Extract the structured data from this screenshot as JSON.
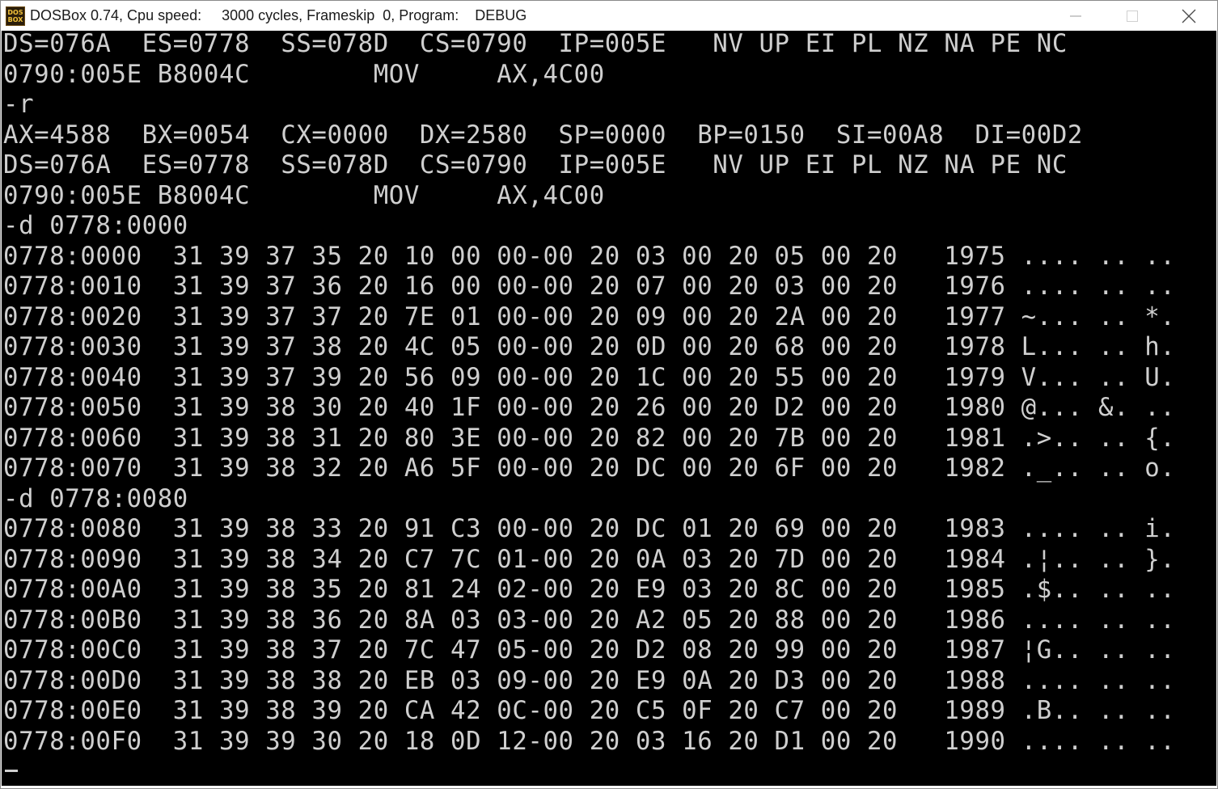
{
  "window": {
    "title": "DOSBox 0.74, Cpu speed:     3000 cycles, Frameskip  0, Program:    DEBUG",
    "icon": "dosbox-icon",
    "icon_text_top": "DOS",
    "icon_text_bottom": "BOX",
    "controls": [
      "minimize-icon",
      "maximize-icon",
      "close-icon"
    ]
  },
  "terminal": {
    "lines": [
      "DS=076A  ES=0778  SS=078D  CS=0790  IP=005E   NV UP EI PL NZ NA PE NC",
      "0790:005E B8004C        MOV     AX,4C00",
      "-r",
      "AX=4588  BX=0054  CX=0000  DX=2580  SP=0000  BP=0150  SI=00A8  DI=00D2",
      "DS=076A  ES=0778  SS=078D  CS=0790  IP=005E   NV UP EI PL NZ NA PE NC",
      "0790:005E B8004C        MOV     AX,4C00",
      "-d 0778:0000",
      "0778:0000  31 39 37 35 20 10 00 00-00 20 03 00 20 05 00 20   1975 .... .. ..",
      "0778:0010  31 39 37 36 20 16 00 00-00 20 07 00 20 03 00 20   1976 .... .. ..",
      "0778:0020  31 39 37 37 20 7E 01 00-00 20 09 00 20 2A 00 20   1977 ~... .. *.",
      "0778:0030  31 39 37 38 20 4C 05 00-00 20 0D 00 20 68 00 20   1978 L... .. h.",
      "0778:0040  31 39 37 39 20 56 09 00-00 20 1C 00 20 55 00 20   1979 V... .. U.",
      "0778:0050  31 39 38 30 20 40 1F 00-00 20 26 00 20 D2 00 20   1980 @... &. ..",
      "0778:0060  31 39 38 31 20 80 3E 00-00 20 82 00 20 7B 00 20   1981 .>.. .. {.",
      "0778:0070  31 39 38 32 20 A6 5F 00-00 20 DC 00 20 6F 00 20   1982 ._.. .. o.",
      "-d 0778:0080",
      "0778:0080  31 39 38 33 20 91 C3 00-00 20 DC 01 20 69 00 20   1983 .... .. i.",
      "0778:0090  31 39 38 34 20 C7 7C 01-00 20 0A 03 20 7D 00 20   1984 .¦.. .. }.",
      "0778:00A0  31 39 38 35 20 81 24 02-00 20 E9 03 20 8C 00 20   1985 .$.. .. ..",
      "0778:00B0  31 39 38 36 20 8A 03 03-00 20 A2 05 20 88 00 20   1986 .... .. ..",
      "0778:00C0  31 39 38 37 20 7C 47 05-00 20 D2 08 20 99 00 20   1987 ¦G.. .. ..",
      "0778:00D0  31 39 38 38 20 EB 03 09-00 20 E9 0A 20 D3 00 20   1988 .... .. ..",
      "0778:00E0  31 39 38 39 20 CA 42 0C-00 20 C5 0F 20 C7 00 20   1989 .B.. .. ..",
      "0778:00F0  31 39 39 30 20 18 0D 12-00 20 03 16 20 D1 00 20   1990 .... .. .."
    ],
    "cursor": "_"
  },
  "colors": {
    "terminal_background": "#000000",
    "terminal_text": "#cfcfcf",
    "titlebar_background": "#ffffff"
  }
}
